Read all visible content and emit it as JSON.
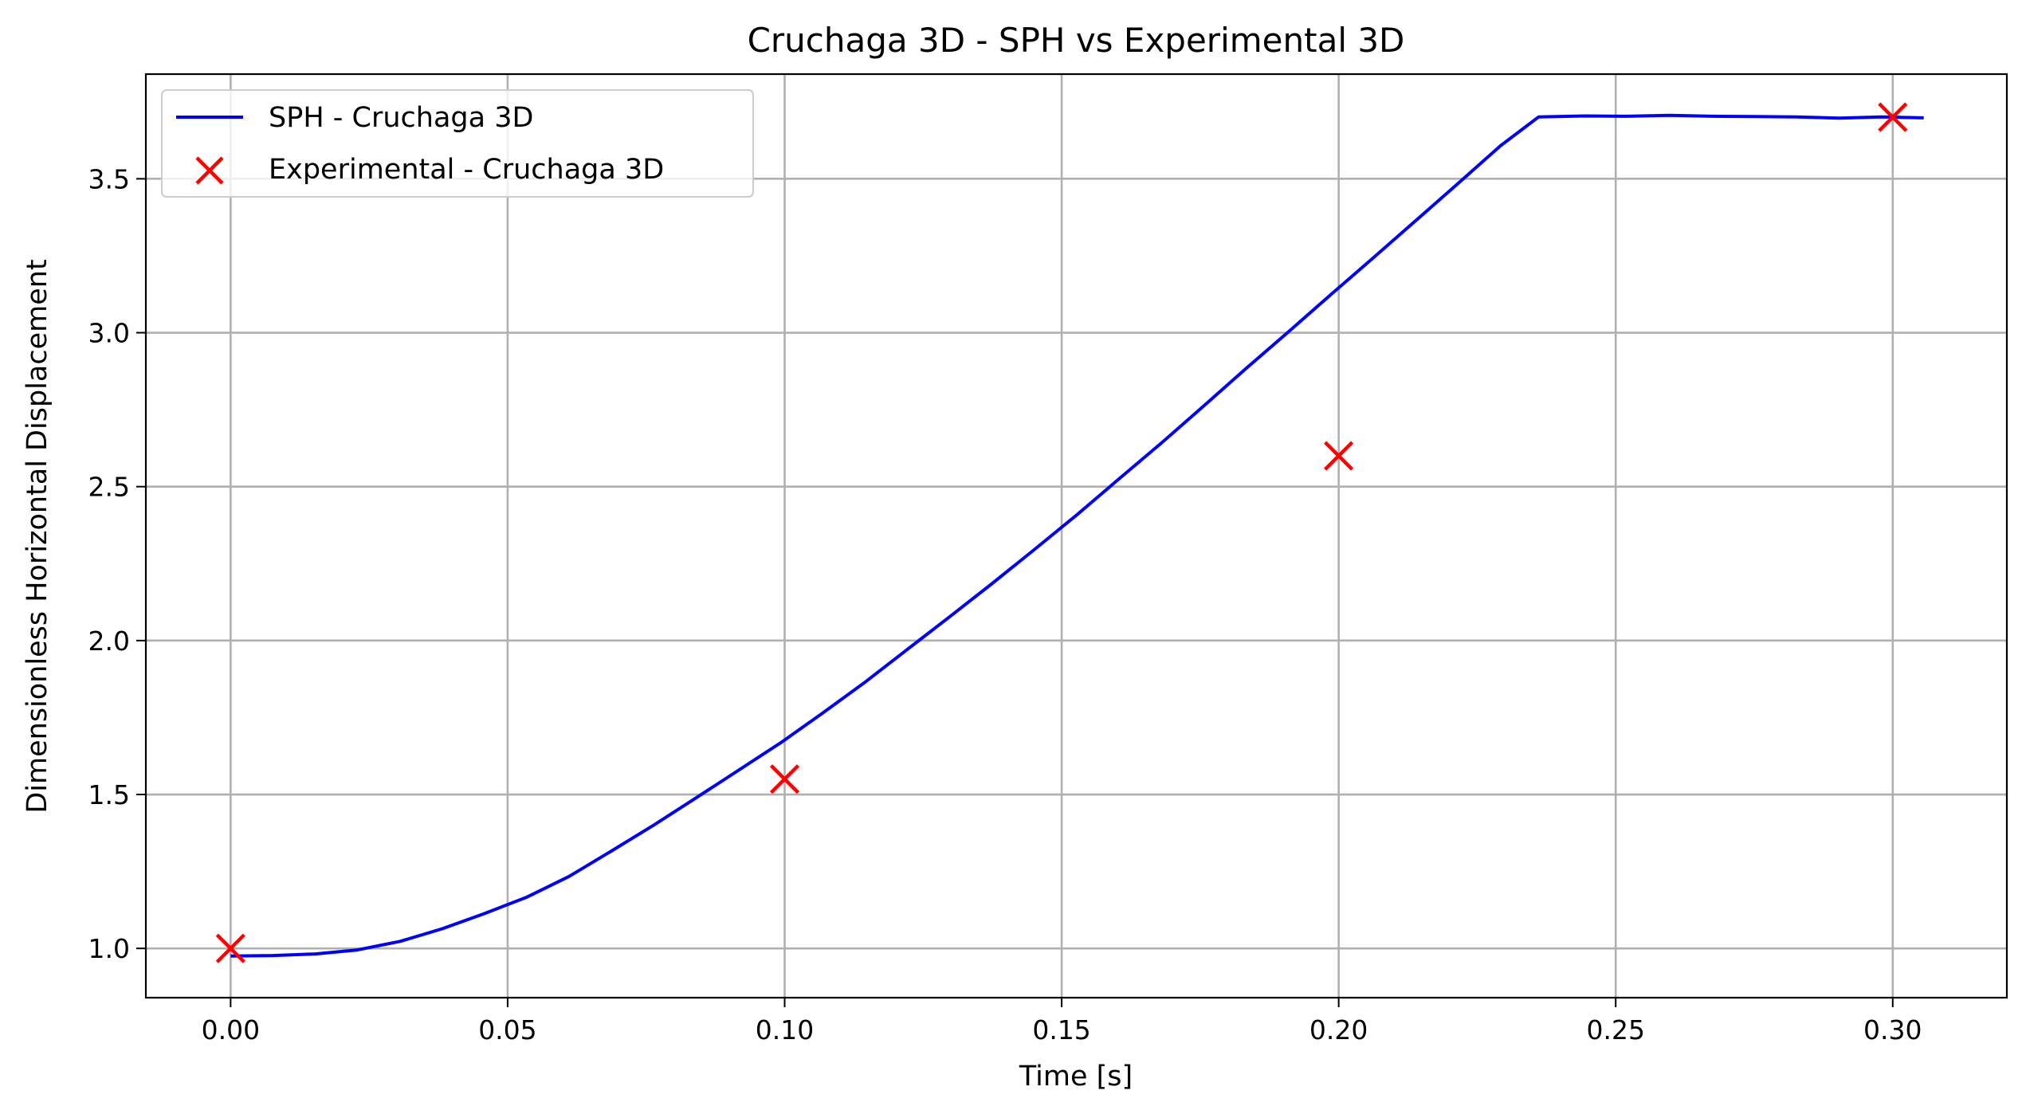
{
  "chart_data": {
    "type": "line",
    "title": "Cruchaga 3D - SPH vs Experimental 3D",
    "xlabel": "Time [s]",
    "ylabel": "Dimensionless Horizontal Displacement",
    "xlim": [
      -0.0153,
      0.3206
    ],
    "ylim": [
      0.84,
      3.84
    ],
    "x_ticks": [
      0.0,
      0.05,
      0.1,
      0.15,
      0.2,
      0.25,
      0.3
    ],
    "x_tick_labels": [
      "0.00",
      "0.05",
      "0.10",
      "0.15",
      "0.20",
      "0.25",
      "0.30"
    ],
    "y_ticks": [
      1.0,
      1.5,
      2.0,
      2.5,
      3.0,
      3.5
    ],
    "y_tick_labels": [
      "1.0",
      "1.5",
      "2.0",
      "2.5",
      "3.0",
      "3.5"
    ],
    "grid": true,
    "legend_position": "top-left",
    "series": [
      {
        "name": "SPH - Cruchaga 3D",
        "kind": "line",
        "color": "#0000ff",
        "x": [
          0.0,
          0.0076,
          0.0153,
          0.0229,
          0.0306,
          0.0382,
          0.0458,
          0.0535,
          0.0611,
          0.0687,
          0.0764,
          0.084,
          0.0917,
          0.0993,
          0.1069,
          0.1146,
          0.1222,
          0.1299,
          0.1375,
          0.1451,
          0.1528,
          0.1604,
          0.1681,
          0.1757,
          0.1833,
          0.191,
          0.1986,
          0.2063,
          0.2139,
          0.2215,
          0.2292,
          0.2361,
          0.2445,
          0.2521,
          0.2597,
          0.2674,
          0.275,
          0.2827,
          0.2903,
          0.2979,
          0.3056
        ],
        "y": [
          0.975,
          0.977,
          0.982,
          0.995,
          1.023,
          1.064,
          1.113,
          1.167,
          1.234,
          1.316,
          1.401,
          1.489,
          1.579,
          1.668,
          1.765,
          1.866,
          1.972,
          2.079,
          2.186,
          2.296,
          2.409,
          2.526,
          2.643,
          2.763,
          2.884,
          3.004,
          3.124,
          3.244,
          3.364,
          3.484,
          3.607,
          3.701,
          3.704,
          3.703,
          3.706,
          3.703,
          3.702,
          3.701,
          3.697,
          3.701,
          3.698
        ]
      },
      {
        "name": "Experimental - Cruchaga 3D",
        "kind": "scatter",
        "marker": "x",
        "color": "#ff0000",
        "x": [
          0.0,
          0.1,
          0.2,
          0.3
        ],
        "y": [
          1.0,
          1.55,
          2.6,
          3.7
        ]
      }
    ]
  }
}
